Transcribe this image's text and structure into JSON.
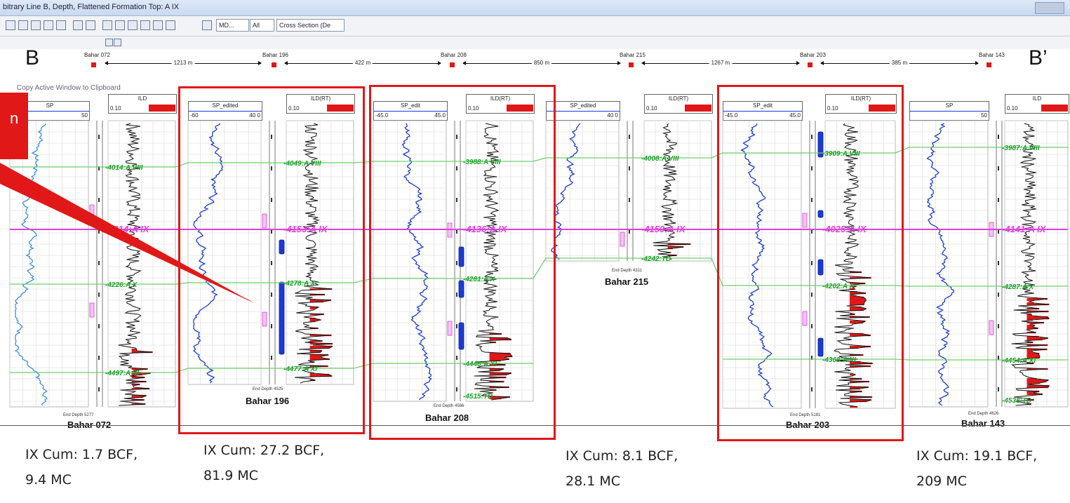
{
  "window": {
    "title": "bitrary Line B, Depth, Flattened Formation Top: A IX"
  },
  "toolbar": {
    "combo_md": "MD...",
    "combo_all": "All",
    "combo_xsec": "Cross Section (De"
  },
  "context": {
    "copy_hint": "Copy Active Window to Clipboard"
  },
  "labels": {
    "left": "B",
    "right": "B’"
  },
  "callout": {
    "text": "n"
  },
  "wells": [
    {
      "name": "Bahar 072",
      "head": "Bahar 072",
      "end_depth": "End Depth 5277",
      "cum_line1": "IX Cum: 1.7 BCF,",
      "cum_line2": "9.4 MC",
      "tops": [
        "-4014:A VIII",
        "-4314:A IX",
        "-4226:A X",
        "-4497:A XI"
      ],
      "tracks": [
        "SP",
        "ILD"
      ]
    },
    {
      "name": "Bahar 196",
      "head": "Bahar 196",
      "end_depth": "End Depth 4525",
      "cum_line1": "IX Cum: 27.2 BCF,",
      "cum_line2": "81.9 MC",
      "tops": [
        "-4049:A VIII",
        "-4153:A IX",
        "-4278:A X",
        "-4477:A XI"
      ],
      "tracks": [
        "SP_edited",
        "ILD(RT)"
      ]
    },
    {
      "name": "Bahar 208",
      "head": "Bahar 208",
      "end_depth": "End Depth 4566",
      "tops": [
        "-3988:A VIII",
        "-4136:A IX",
        "-4281:A X",
        "-4446:A XI",
        "-4515:TD"
      ],
      "tracks": [
        "SP_edit",
        "ILD(RT)"
      ]
    },
    {
      "name": "Bahar 215",
      "head": "Bahar 215",
      "end_depth": "End Depth 4311",
      "cum_line1": "IX Cum: 8.1 BCF,",
      "cum_line2": "28.1 MC",
      "tops": [
        "-4008:A VIII",
        "-4150:A IX",
        "-4242:TD"
      ],
      "tracks": [
        "SP_edited",
        "ILD(RT)"
      ]
    },
    {
      "name": "Bahar 203",
      "head": "Bahar 203",
      "end_depth": "End Depth 5181",
      "tops": [
        "-3909:A VIII",
        "-4025:A IX",
        "-4202:A X",
        "-4368:A XI"
      ],
      "tracks": [
        "SP_edit",
        "ILD(RT)"
      ]
    },
    {
      "name": "Bahar 143",
      "head": "Bahar 143",
      "end_depth": "End Depth 4626",
      "cum_line1": "IX Cum: 19.1 BCF,",
      "cum_line2": "209 MC",
      "tops": [
        "-3987:A VIII",
        "-4141:A IX",
        "-4287:A X",
        "-4454:A XI",
        "-4538:TD"
      ],
      "tracks": [
        "SP",
        "ILD"
      ]
    }
  ],
  "spacings": [
    "1213 m",
    "422 m",
    "850 m",
    "1267 m",
    "385 m"
  ],
  "scales": {
    "sp_a": "50",
    "sp_b": "-60",
    "sp_b2": "40 0",
    "sp_c": "-45.0",
    "sp_c2": "45.0",
    "ild_lo": "0.10",
    "ild_hi": "40 0"
  },
  "colors": {
    "correlation_A_IX": "#e040e0",
    "correlation_other": "#6ccf6c",
    "highlight_box": "#e01818",
    "sp_curve": "#1b3bd6",
    "sp_curve_light": "#3a8ee0",
    "ild_fill": "#e01818",
    "perforation": "#1b3bd6"
  }
}
